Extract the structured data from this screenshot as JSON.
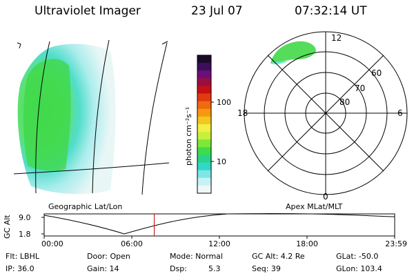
{
  "header": {
    "title": "Ultraviolet Imager",
    "date": "23 Jul 07",
    "time": "07:32:14 UT"
  },
  "geo_map": {
    "label": "Geographic Lat/Lon"
  },
  "colorbar": {
    "unit_label": "photon cm⁻²s⁻¹",
    "ticks": [
      "100",
      "10"
    ],
    "colors": [
      "#1c0a2a",
      "#3b0f5a",
      "#6b0f7a",
      "#9a0f3e",
      "#c51016",
      "#e23a10",
      "#f06a10",
      "#f59a10",
      "#f5c520",
      "#f2ef45",
      "#c8f03a",
      "#7ee83a",
      "#3fdc4a",
      "#2ad38a",
      "#30d8c8",
      "#7ee6e6",
      "#c8f2f2",
      "#eef8f8"
    ]
  },
  "polar": {
    "label": "Apex MLat/MLT",
    "mlt_labels": {
      "top": "12",
      "left": "18",
      "right": "6",
      "bottom": "0"
    },
    "lat_labels": [
      "60",
      "70",
      "80"
    ]
  },
  "altitude_plot": {
    "ylabel": "GC Alt",
    "yticks": [
      "9.0",
      "1.8"
    ],
    "xticks": [
      "00:00",
      "06:00",
      "12:00",
      "18:00",
      "23:59"
    ],
    "current_time_fraction": 0.314,
    "marker_color": "#cc0000"
  },
  "info": {
    "row1": [
      "Flt: LBHL",
      "Door: Open",
      "Mode: Normal",
      "GC Alt: 4.2 Re",
      "GLat: -50.0"
    ],
    "row2": [
      "IP: 36.0",
      "Gain: 14",
      "Dsp:",
      "5.3",
      "Seq: 39",
      "GLon: 103.4"
    ]
  }
}
